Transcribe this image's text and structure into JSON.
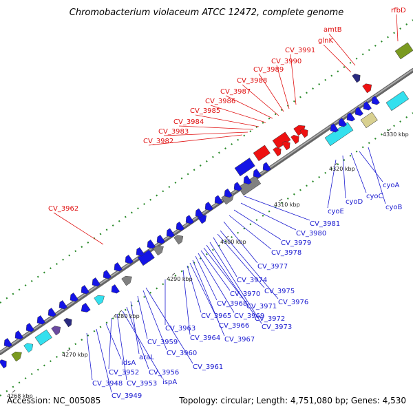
{
  "title": "Chromobacterium violaceum ATCC 12472, complete genome",
  "footer": {
    "accession": "Accession: NC_005085",
    "summary": "Topology: circular; Length: 4,751,080 bp; Genes: 4,530"
  },
  "colors": {
    "backbone": "#888888",
    "tick_dots": "#2a8a2a",
    "red_label": "#e01010",
    "blue_label": "#1a1ad0",
    "gene_blue": "#1414e6",
    "gene_red": "#ee1111",
    "gene_gray": "#808080",
    "gene_tan": "#d8d090",
    "gene_cyan": "#33e0ee",
    "gene_olive": "#7a9a20",
    "gene_navy": "#2a2a80",
    "gene_purple": "#6a4aa0"
  },
  "ticks": [
    "4268 kbp",
    "4270 kbp",
    "4280 kbp",
    "4290 kbp",
    "4300 kbp",
    "4310 kbp",
    "4320 kbp",
    "4330 kbp"
  ],
  "red_labels": [
    "rfbD",
    "amtB",
    "glnK",
    "CV_3991",
    "CV_3990",
    "CV_3989",
    "CV_3988",
    "CV_3987",
    "CV_3986",
    "CV_3985",
    "CV_3984",
    "CV_3983",
    "CV_3982",
    "CV_3962"
  ],
  "blue_labels": [
    "CV_3981",
    "CV_3980",
    "CV_3979",
    "CV_3978",
    "CV_3977",
    "CV_3976",
    "CV_3975",
    "CV_3974",
    "CV_3973",
    "CV_3972",
    "CV_3971",
    "CV_3970",
    "CV_3969",
    "CV_3968",
    "CV_3967",
    "CV_3966",
    "CV_3965",
    "CV_3964",
    "CV_3963",
    "CV_3961",
    "CV_3960",
    "CV_3959",
    "araL",
    "CV_3956",
    "ispA",
    "CV_3953",
    "CV_3952",
    "idsA",
    "CV_3949",
    "CV_3948",
    "cyoA",
    "cyoB",
    "cyoC",
    "cyoD",
    "cyoE"
  ]
}
